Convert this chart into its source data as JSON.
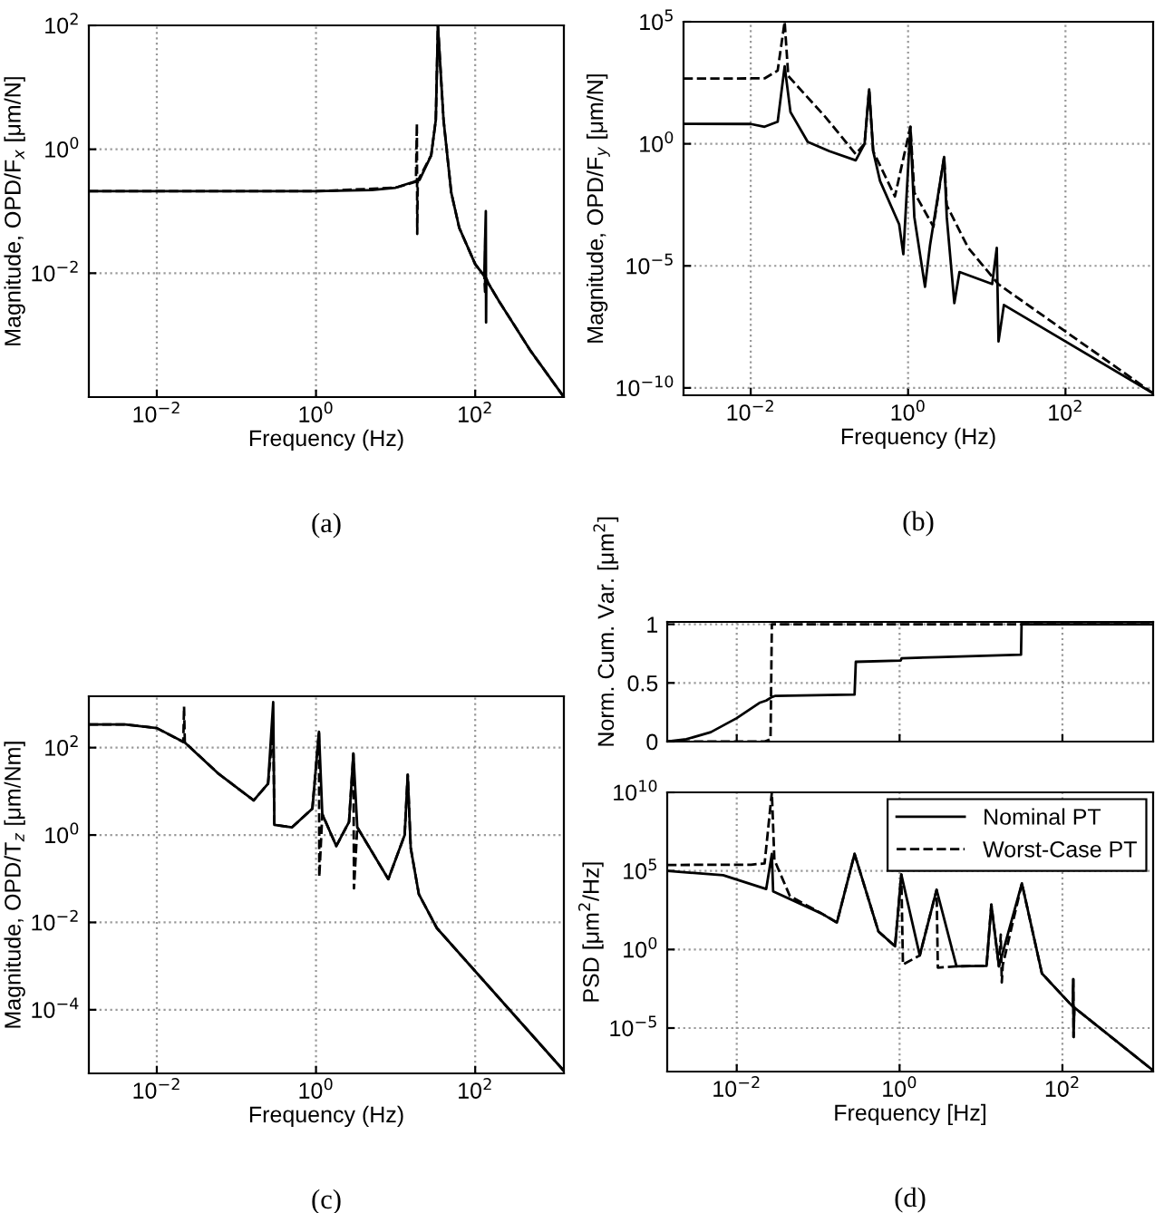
{
  "chart_data": [
    {
      "type": "line",
      "xlabel": "Frequency (Hz)",
      "ylabel": "Magnitude, OPD/F$_{x}$ [μm/N]",
      "log": "xy",
      "grid": true,
      "xlim": [
        0.0014,
        1300
      ],
      "ylim": [
        0.0001,
        100
      ],
      "xticks": [
        {
          "value": 0.01,
          "label": "10$^{−2}$"
        },
        {
          "value": 1,
          "label": "10$^{0}$"
        },
        {
          "value": 100,
          "label": "10$^{2}$"
        }
      ],
      "yticks": [
        {
          "value": 0.01,
          "label": "10$^{−2}$"
        },
        {
          "value": 1,
          "label": "10$^{0}$"
        },
        {
          "value": 100,
          "label": "10$^{2}$"
        }
      ],
      "annotations": [
        "(a)"
      ],
      "series": [
        {
          "color": "#000000",
          "line_style": "solid",
          "x": [
            0.0014,
            0.1,
            1,
            5,
            10,
            20,
            28,
            32,
            34,
            40,
            50,
            63,
            100,
            130,
            136,
            137,
            138,
            145,
            200,
            500,
            1300
          ],
          "values": [
            0.21,
            0.21,
            0.21,
            0.22,
            0.24,
            0.32,
            0.8,
            3,
            100,
            3,
            0.2,
            0.054,
            0.014,
            0.009,
            0.1,
            0.0016,
            0.008,
            0.007,
            0.0035,
            0.00055,
            0.0001
          ]
        },
        {
          "color": "#000000",
          "line_style": "dashed",
          "x": [
            0.0014,
            1,
            10,
            18,
            18.5,
            18.7,
            19,
            28,
            32,
            34,
            40,
            50,
            63,
            100,
            130,
            133,
            134,
            135,
            145,
            200,
            500,
            1300
          ],
          "values": [
            0.21,
            0.21,
            0.24,
            0.3,
            2.6,
            0.043,
            0.31,
            0.8,
            3,
            100,
            3,
            0.2,
            0.054,
            0.014,
            0.009,
            0.005,
            0.04,
            0.009,
            0.007,
            0.0035,
            0.00055,
            0.0001
          ]
        }
      ]
    },
    {
      "type": "line",
      "xlabel": "Frequency (Hz)",
      "ylabel": "Magnitude, OPD/F$_{y}$ [μm/N]",
      "log": "xy",
      "grid": true,
      "xlim": [
        0.0014,
        1300
      ],
      "ylim": [
        5e-11,
        100000
      ],
      "xticks": [
        {
          "value": 0.01,
          "label": "10$^{−2}$"
        },
        {
          "value": 1,
          "label": "10$^{0}$"
        },
        {
          "value": 100,
          "label": "10$^{2}$"
        }
      ],
      "yticks": [
        {
          "value": 1e-10,
          "label": "10$^{−10}$"
        },
        {
          "value": 1e-05,
          "label": "10$^{−5}$"
        },
        {
          "value": 1,
          "label": "10$^{0}$"
        },
        {
          "value": 100000,
          "label": "10$^{5}$"
        }
      ],
      "annotations": [
        "(b)"
      ],
      "series": [
        {
          "color": "#000000",
          "line_style": "solid",
          "x": [
            0.0014,
            0.01,
            0.015,
            0.022,
            0.027,
            0.032,
            0.053,
            0.1,
            0.216,
            0.28,
            0.32,
            0.36,
            0.44,
            0.77,
            0.87,
            1.07,
            1.2,
            1.64,
            1.9,
            2.87,
            3.1,
            3.87,
            4.5,
            11.7,
            13.4,
            14.1,
            16.5,
            1300
          ],
          "values": [
            6.6,
            6.5,
            5,
            8,
            1500,
            20,
            1.2,
            0.5,
            0.21,
            1,
            170,
            0.5,
            0.03,
            0.0005,
            3e-05,
            5,
            0.001,
            1.4e-06,
            7e-05,
            0.29,
            0.001,
            3e-07,
            5.6e-06,
            1.8e-06,
            5.5e-05,
            8e-09,
            2.5e-07,
            6e-11
          ]
        },
        {
          "color": "#000000",
          "line_style": "dashed",
          "x": [
            0.0014,
            0.015,
            0.022,
            0.027,
            0.03,
            0.09,
            0.216,
            0.28,
            0.32,
            0.36,
            0.68,
            1.07,
            1.2,
            2.1,
            2.87,
            3.1,
            5.8,
            14,
            1300
          ],
          "values": [
            470,
            480,
            1000,
            100000,
            600,
            12,
            0.38,
            1,
            170,
            0.5,
            0.007,
            5,
            0.01,
            0.0004,
            0.29,
            0.003,
            5.5e-05,
            1.8e-06,
            6e-11
          ]
        }
      ]
    },
    {
      "type": "line",
      "xlabel": "Frequency (Hz)",
      "ylabel": "Magnitude, OPD/T$_{z}$ [μm/Nm]",
      "log": "xy",
      "grid": true,
      "xlim": [
        0.0014,
        1300
      ],
      "ylim": [
        3.5e-06,
        1500
      ],
      "xticks": [
        {
          "value": 0.01,
          "label": "10$^{−2}$"
        },
        {
          "value": 1,
          "label": "10$^{0}$"
        },
        {
          "value": 100,
          "label": "10$^{2}$"
        }
      ],
      "yticks": [
        {
          "value": 0.0001,
          "label": "10$^{−4}$"
        },
        {
          "value": 0.01,
          "label": "10$^{−2}$"
        },
        {
          "value": 1,
          "label": "10$^{0}$"
        },
        {
          "value": 100,
          "label": "10$^{2}$"
        }
      ],
      "annotations": [
        "(c)"
      ],
      "series": [
        {
          "color": "#000000",
          "line_style": "solid",
          "x": [
            0.0014,
            0.004,
            0.01,
            0.0226,
            0.06,
            0.165,
            0.25,
            0.29,
            0.3,
            0.5,
            0.9,
            1.09,
            1.2,
            1.8,
            2.6,
            2.95,
            3.3,
            8.1,
            13,
            14.2,
            15.5,
            19.6,
            33,
            1300
          ],
          "values": [
            340,
            340,
            280,
            130,
            25,
            6.2,
            15,
            1100,
            1.7,
            1.5,
            4,
            230,
            3,
            0.56,
            2,
            73,
            1.5,
            0.098,
            1,
            24,
            0.5,
            0.044,
            0.0074,
            4e-06
          ]
        },
        {
          "color": "#000000",
          "line_style": "dashed",
          "x": [
            0.0014,
            0.004,
            0.01,
            0.0215,
            0.022,
            0.0225,
            0.0226,
            0.06,
            0.165,
            0.25,
            0.29,
            0.3,
            0.5,
            0.9,
            1.09,
            1.1,
            1.2,
            1.8,
            2.6,
            2.95,
            3.0,
            3.3,
            8.1,
            13,
            14.2,
            15.5,
            19.6,
            33,
            1300
          ],
          "values": [
            340,
            340,
            280,
            135,
            870,
            130,
            130,
            25,
            6.2,
            15,
            300,
            1.7,
            1.5,
            4,
            230,
            0.11,
            3,
            0.56,
            2,
            73,
            0.06,
            1.5,
            0.098,
            1,
            24,
            0.5,
            0.044,
            0.0074,
            4e-06
          ]
        }
      ]
    },
    {
      "type": "line",
      "ylabel": "Norm. Cum. Var. [μm$^{2}$]",
      "log": "x",
      "grid": true,
      "tick_labels": "y",
      "xlim": [
        0.0014,
        1300
      ],
      "ylim": [
        0,
        1.02
      ],
      "xticks": [
        {
          "value": 0.01,
          "label": null
        },
        {
          "value": 1,
          "label": null
        },
        {
          "value": 100,
          "label": null
        }
      ],
      "yticks": [
        0,
        0.5,
        1
      ],
      "series": [
        {
          "color": "#000000",
          "line_style": "solid",
          "x": [
            0.0014,
            0.0024,
            0.0048,
            0.01,
            0.019,
            0.023,
            0.027,
            0.03,
            0.28,
            0.29,
            1.03,
            1.06,
            3,
            31,
            31.5,
            1300
          ],
          "values": [
            0,
            0.02,
            0.08,
            0.2,
            0.33,
            0.35,
            0.38,
            0.39,
            0.4,
            0.68,
            0.69,
            0.71,
            0.72,
            0.74,
            1,
            1
          ]
        },
        {
          "color": "#000000",
          "line_style": "dashed",
          "x": [
            0.0014,
            0.022,
            0.026,
            0.027,
            1300
          ],
          "values": [
            0,
            0,
            0.02,
            1,
            1
          ]
        }
      ]
    },
    {
      "type": "line",
      "xlabel": "Frequency [Hz]",
      "ylabel": "PSD [μm$^{2}$/Hz]",
      "log": "xy",
      "grid": true,
      "legend": "top right",
      "xlim": [
        0.0014,
        1300
      ],
      "ylim": [
        1.7e-08,
        10000000000
      ],
      "xticks": [
        {
          "value": 0.01,
          "label": "10$^{−2}$"
        },
        {
          "value": 1,
          "label": "10$^{0}$"
        },
        {
          "value": 100,
          "label": "10$^{2}$"
        }
      ],
      "yticks": [
        {
          "value": 1e-05,
          "label": "10$^{−5}$"
        },
        {
          "value": 1,
          "label": "10$^{0}$"
        },
        {
          "value": 100000,
          "label": "10$^{5}$"
        },
        {
          "value": 10000000000,
          "label": "10$^{10}$"
        }
      ],
      "annotations": [
        "(d)"
      ],
      "series": [
        {
          "name": "Nominal PT",
          "color": "#000000",
          "line_style": "solid",
          "x": [
            0.0014,
            0.0068,
            0.023,
            0.027,
            0.028,
            0.11,
            0.17,
            0.28,
            0.55,
            0.88,
            1.05,
            1.77,
            2.85,
            5,
            11.7,
            13.4,
            16.6,
            31.8,
            56,
            134,
            136,
            137,
            140,
            1300
          ],
          "values": [
            100000,
            53000,
            7000,
            1200000,
            5000,
            195,
            52,
            1200000,
            14,
            1.6,
            59000,
            0.42,
            6300,
            0.085,
            0.09,
            720,
            0.085,
            16000,
            0.03,
            0.00023,
            0.0126,
            2.7e-06,
            0.0002,
            2e-08
          ]
        },
        {
          "name": "Worst-Case PT",
          "color": "#000000",
          "line_style": "dashed",
          "x": [
            0.0014,
            0.015,
            0.022,
            0.027,
            0.029,
            0.045,
            0.11,
            0.17,
            0.28,
            0.55,
            0.88,
            1.05,
            1.1,
            1.77,
            2.85,
            2.95,
            5,
            11.7,
            13.4,
            16.6,
            17.5,
            18,
            18.5,
            31.8,
            56,
            134,
            136,
            137,
            140,
            1300
          ],
          "values": [
            240000,
            250000,
            300000,
            10000000000,
            500000,
            2500,
            195,
            52,
            1200000,
            14,
            1.6,
            59000,
            0.11,
            0.42,
            6300,
            0.07,
            0.085,
            0.09,
            720,
            0.085,
            9,
            0.008,
            0.1,
            16000,
            0.03,
            0.00023,
            0.0126,
            2.7e-06,
            0.0002,
            2e-08
          ]
        }
      ]
    }
  ]
}
